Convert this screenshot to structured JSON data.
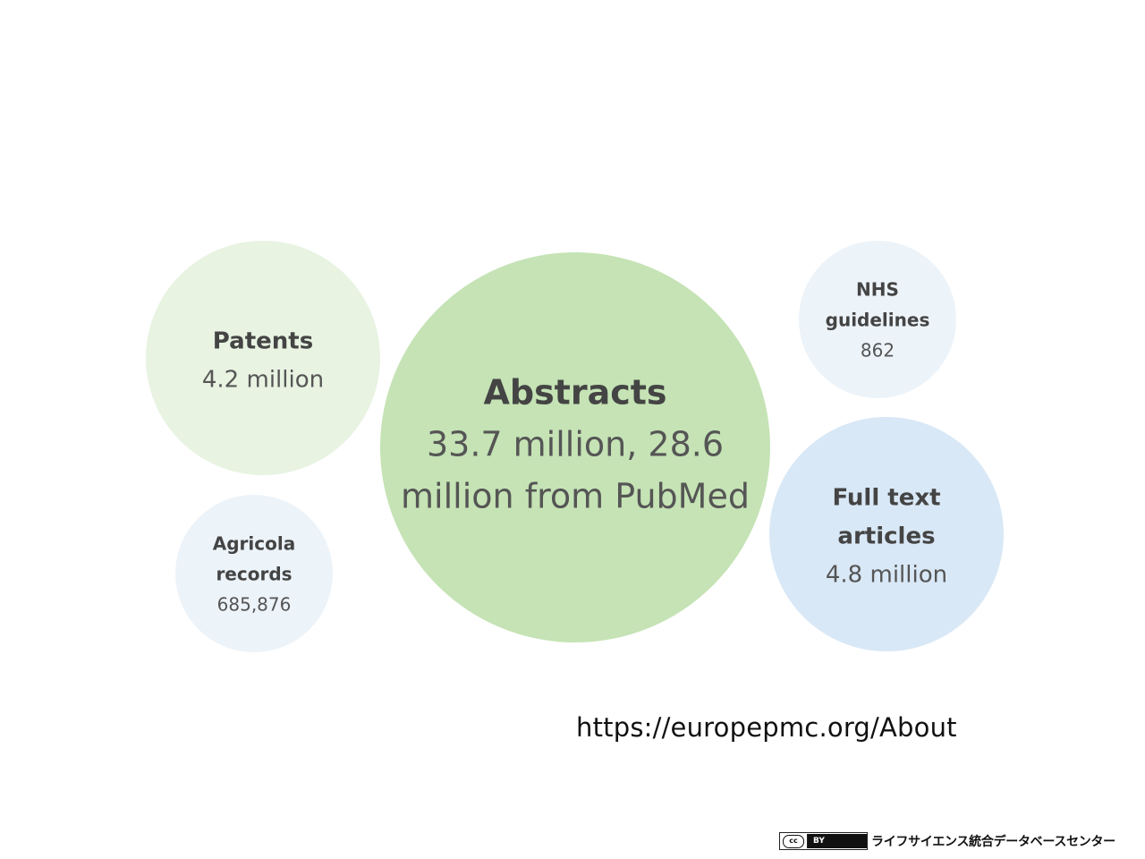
{
  "chart_data": {
    "type": "bubble",
    "bubbles": [
      {
        "id": "abstracts",
        "title": "Abstracts",
        "value_text": [
          "33.7 million, 28.6",
          "million from PubMed"
        ],
        "value": 33700000,
        "color": "#c5e3b5"
      },
      {
        "id": "patents",
        "title": "Patents",
        "value_text": [
          "4.2 million"
        ],
        "value": 4200000,
        "color": "#e8f3e2"
      },
      {
        "id": "agricola",
        "title": "Agricola records",
        "title_lines": [
          "Agricola",
          "records"
        ],
        "value_text": [
          "685,876"
        ],
        "value": 685876,
        "color": "#ecf3f9"
      },
      {
        "id": "nhs",
        "title": "NHS guidelines",
        "title_lines": [
          "NHS",
          "guidelines"
        ],
        "value_text": [
          "862"
        ],
        "value": 862,
        "color": "#ecf3f9"
      },
      {
        "id": "fulltext",
        "title": "Full text articles",
        "title_lines": [
          "Full text",
          "articles"
        ],
        "value_text": [
          "4.8 million"
        ],
        "value": 4800000,
        "color": "#d9e8f6"
      }
    ]
  },
  "source": {
    "url_text": "https://europepmc.org/About"
  },
  "footer": {
    "cc_mark": "cc",
    "license": "BY",
    "organization": "ライフサイエンス統合データベースセンター"
  }
}
